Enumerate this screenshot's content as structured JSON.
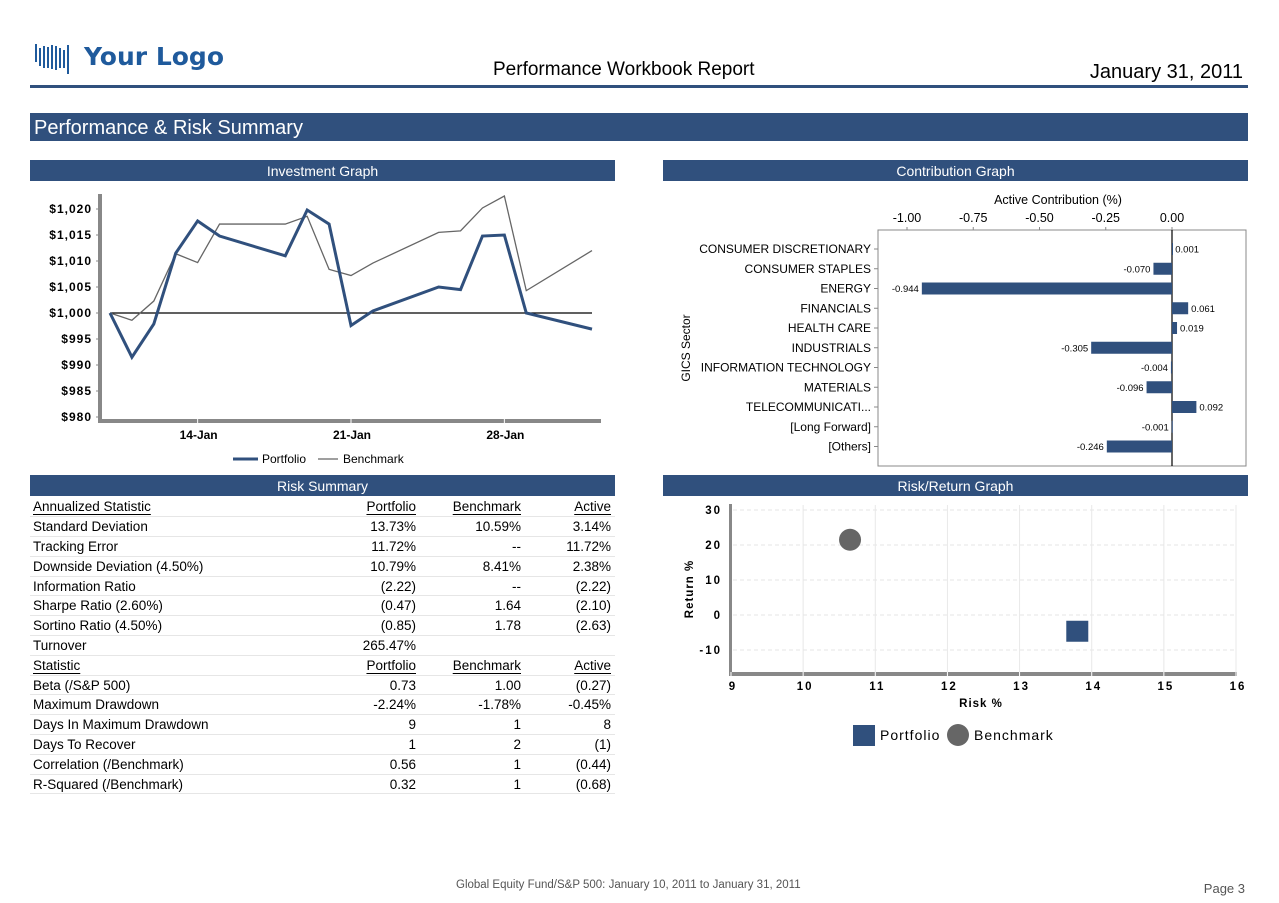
{
  "header": {
    "logo_text": "Your Logo",
    "report_title": "Performance Workbook Report",
    "report_date": "January 31, 2011"
  },
  "section_title": "Performance & Risk Summary",
  "colors": {
    "brand": "#30507d",
    "portfolio": "#30507d",
    "benchmark": "#666666",
    "logo": "#1f5a9c"
  },
  "panels": {
    "investment_graph": "Investment Graph",
    "contribution_graph": "Contribution Graph",
    "risk_summary": "Risk Summary",
    "risk_return_graph": "Risk/Return Graph"
  },
  "chart_data": [
    {
      "type": "line",
      "title": "Investment Graph",
      "xlabel": "",
      "ylabel": "",
      "x": [
        "10-Jan",
        "11-Jan",
        "12-Jan",
        "13-Jan",
        "14-Jan",
        "15-Jan",
        "18-Jan",
        "19-Jan",
        "20-Jan",
        "21-Jan",
        "22-Jan",
        "25-Jan",
        "26-Jan",
        "27-Jan",
        "28-Jan",
        "29-Jan",
        "31-Jan"
      ],
      "x_index": [
        0,
        1,
        2,
        3,
        4,
        5,
        8,
        9,
        10,
        11,
        12,
        15,
        16,
        17,
        18,
        19,
        22
      ],
      "xticks": [
        {
          "label": "14-Jan",
          "index": 4
        },
        {
          "label": "21-Jan",
          "index": 11
        },
        {
          "label": "28-Jan",
          "index": 18
        }
      ],
      "yticks": [
        "$1,020",
        "$1,015",
        "$1,010",
        "$1,005",
        "$1,000",
        "$995",
        "$990",
        "$985",
        "$980"
      ],
      "ytick_values": [
        1020,
        1015,
        1010,
        1005,
        1000,
        995,
        990,
        985,
        980
      ],
      "ylim": [
        979,
        1024
      ],
      "reference_line": 1000,
      "series": [
        {
          "name": "Portfolio",
          "values": [
            1000,
            991.5,
            997.9,
            1011.5,
            1017.7,
            1014.8,
            1011.0,
            1019.8,
            1017.1,
            997.6,
            1000.4,
            1005.0,
            1004.5,
            1014.8,
            1015.0,
            1000.0,
            996.9
          ]
        },
        {
          "name": "Benchmark",
          "values": [
            1000,
            998.6,
            1002.3,
            1011.4,
            1009.7,
            1017.1,
            1017.1,
            1018.6,
            1008.4,
            1007.2,
            1009.6,
            1015.5,
            1015.8,
            1020.2,
            1022.5,
            1004.3,
            1012.0
          ]
        }
      ],
      "legend": [
        "Portfolio",
        "Benchmark"
      ],
      "legend_position": "bottom"
    },
    {
      "type": "bar",
      "orientation": "horizontal",
      "title": "Active Contribution (%)",
      "xlabel": "Active Contribution (%)",
      "ylabel": "GICS Sector",
      "xlim": [
        -1.09,
        0.16
      ],
      "xticks": [
        "-1.00",
        "-0.75",
        "-0.50",
        "-0.25",
        "0.00"
      ],
      "xtick_values": [
        -1.0,
        -0.75,
        -0.5,
        -0.25,
        0.0
      ],
      "categories": [
        "CONSUMER DISCRETIONARY",
        "CONSUMER STAPLES",
        "ENERGY",
        "FINANCIALS",
        "HEALTH CARE",
        "INDUSTRIALS",
        "INFORMATION TECHNOLOGY",
        "MATERIALS",
        "TELECOMMUNICATI...",
        "[Long Forward]",
        "[Others]"
      ],
      "values": [
        0.001,
        -0.07,
        -0.944,
        0.061,
        0.019,
        -0.305,
        -0.004,
        -0.096,
        0.092,
        -0.001,
        -0.246
      ],
      "labels": [
        "0.001",
        "-0.070",
        "-0.944",
        "0.061",
        "0.019",
        "-0.305",
        "-0.004",
        "-0.096",
        "0.092",
        "-0.001",
        "-0.246"
      ]
    },
    {
      "type": "scatter",
      "title": "Risk/Return Graph",
      "xlabel": "Risk %",
      "ylabel": "Return %",
      "xlim": [
        9,
        16
      ],
      "ylim": [
        -16,
        32
      ],
      "xticks": [
        "9",
        "10",
        "11",
        "12",
        "13",
        "14",
        "15",
        "16"
      ],
      "xtick_values": [
        9,
        10,
        11,
        12,
        13,
        14,
        15,
        16
      ],
      "yticks": [
        "30",
        "20",
        "10",
        "0",
        "-10"
      ],
      "ytick_values": [
        30,
        20,
        10,
        0,
        -10
      ],
      "grid": true,
      "series": [
        {
          "name": "Portfolio",
          "marker": "square",
          "x": 13.8,
          "y": -4.5
        },
        {
          "name": "Benchmark",
          "marker": "circle",
          "x": 10.65,
          "y": 21.5
        }
      ],
      "legend": [
        "Portfolio",
        "Benchmark"
      ],
      "legend_position": "bottom"
    }
  ],
  "risk_summary": {
    "annualized": {
      "headers": [
        "Annualized Statistic",
        "Portfolio",
        "Benchmark",
        "Active"
      ],
      "rows": [
        [
          "Standard Deviation",
          "13.73%",
          "10.59%",
          "3.14%"
        ],
        [
          "Tracking Error",
          "11.72%",
          "--",
          "11.72%"
        ],
        [
          "Downside Deviation (4.50%)",
          "10.79%",
          "8.41%",
          "2.38%"
        ],
        [
          "Information Ratio",
          "(2.22)",
          "--",
          "(2.22)"
        ],
        [
          "Sharpe Ratio (2.60%)",
          "(0.47)",
          "1.64",
          "(2.10)"
        ],
        [
          "Sortino Ratio (4.50%)",
          "(0.85)",
          "1.78",
          "(2.63)"
        ],
        [
          "Turnover",
          "265.47%",
          "",
          ""
        ]
      ]
    },
    "statistic": {
      "headers": [
        "Statistic",
        "Portfolio",
        "Benchmark",
        "Active"
      ],
      "rows": [
        [
          "Beta (/S&P 500)",
          "0.73",
          "1.00",
          "(0.27)"
        ],
        [
          "Maximum Drawdown",
          "-2.24%",
          "-1.78%",
          "-0.45%"
        ],
        [
          "Days In Maximum Drawdown",
          "9",
          "1",
          "8"
        ],
        [
          "Days To Recover",
          "1",
          "2",
          "(1)"
        ],
        [
          "Correlation (/Benchmark)",
          "0.56",
          "1",
          "(0.44)"
        ],
        [
          "R-Squared (/Benchmark)",
          "0.32",
          "1",
          "(0.68)"
        ]
      ]
    }
  },
  "footer": {
    "range": "Global Equity Fund/S&P 500: January 10, 2011 to January 31, 2011",
    "page": "Page 3"
  }
}
